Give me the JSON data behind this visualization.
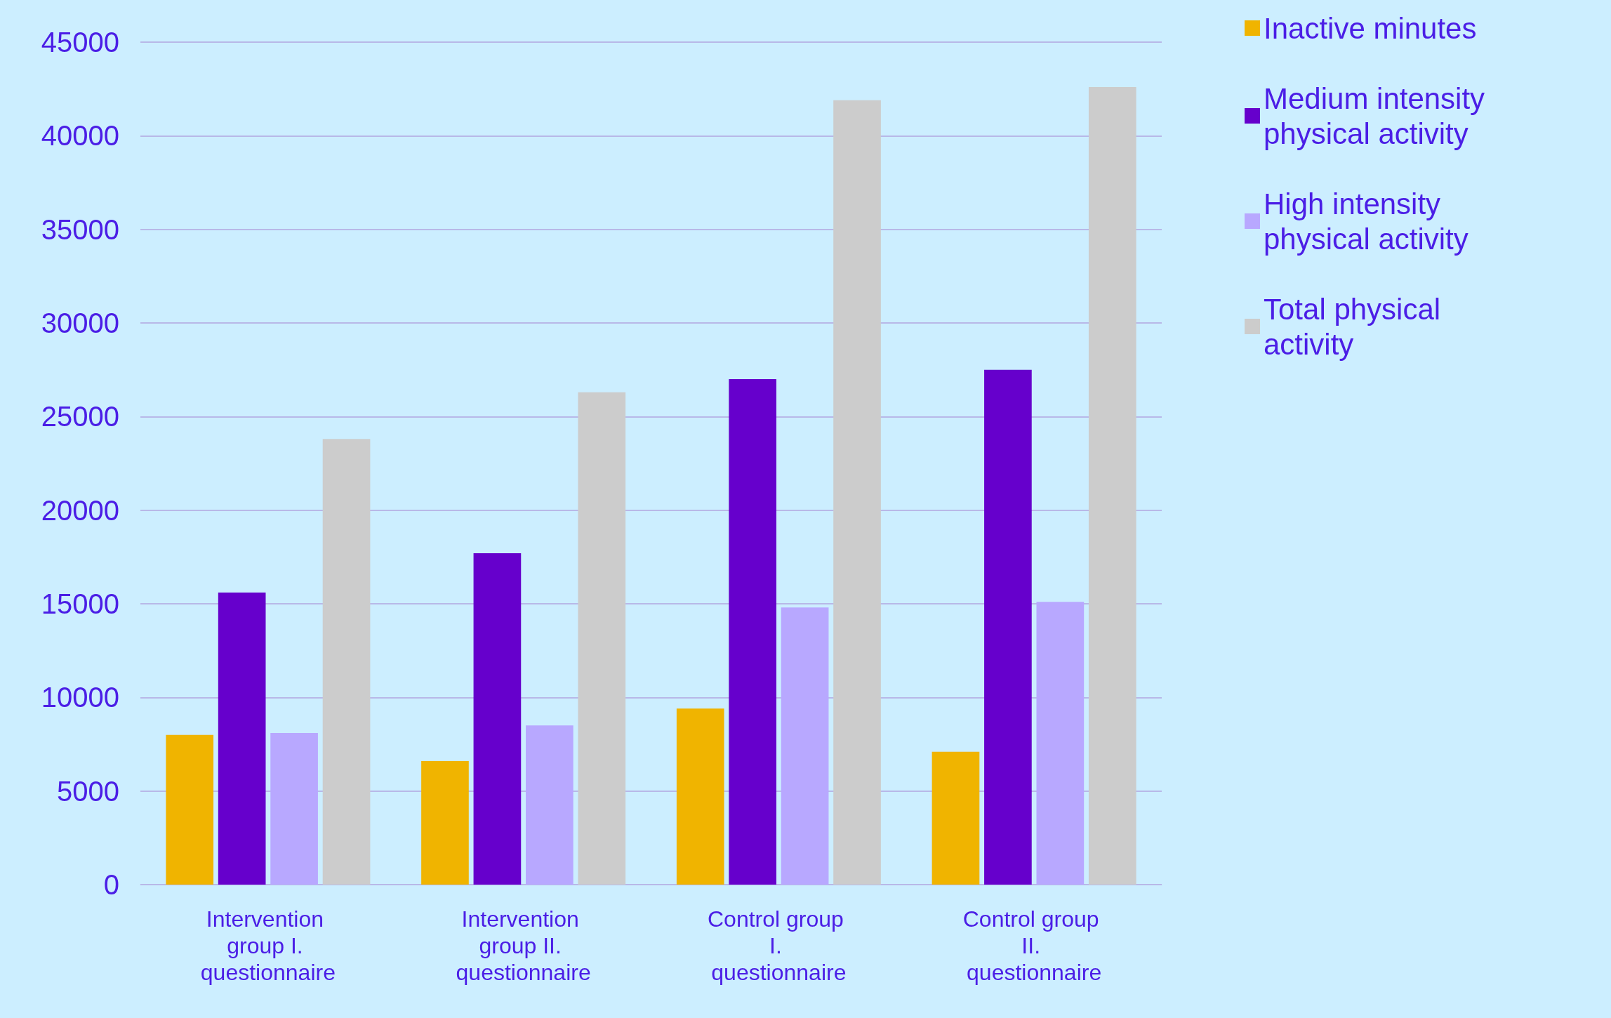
{
  "chart_data": {
    "type": "bar",
    "categories": [
      "Intervention group I. questionnaire",
      "Intervention group II. questionnaire",
      "Control group I. questionnaire",
      "Control group II. questionnaire"
    ],
    "series": [
      {
        "name": "Inactive minutes",
        "color": "#f0b400",
        "values": [
          8000,
          6600,
          9400,
          7100
        ]
      },
      {
        "name": "Medium intensity physical activity",
        "color": "#6600cc",
        "values": [
          15600,
          17700,
          27000,
          27500
        ]
      },
      {
        "name": "High intensity physical activity",
        "color": "#b8a8ff",
        "values": [
          8100,
          8500,
          14800,
          15100
        ]
      },
      {
        "name": "Total physical activity",
        "color": "#cccccc",
        "values": [
          23800,
          26300,
          41900,
          42600
        ]
      }
    ],
    "ylim": [
      0,
      45000
    ],
    "yticks": [
      0,
      5000,
      10000,
      15000,
      20000,
      25000,
      30000,
      35000,
      40000,
      45000
    ],
    "grid": "y",
    "legend": "top right"
  }
}
